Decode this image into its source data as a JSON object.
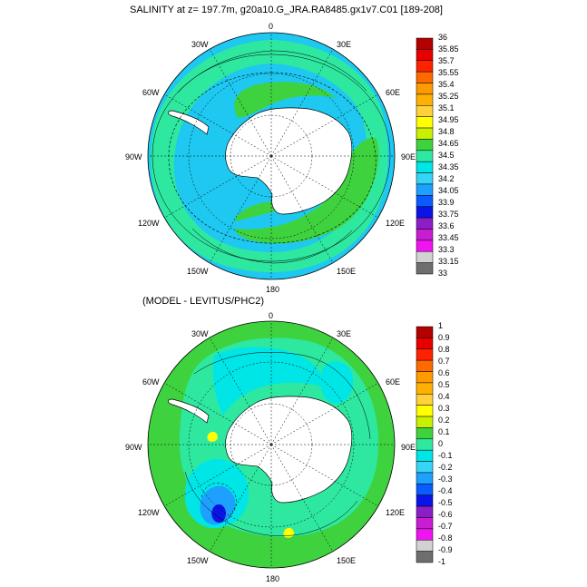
{
  "top_panel": {
    "title": "SALINITY at z= 197.7m, g20a10.G_JRA.RA8485.gx1v7.C01 [189-208]",
    "lon_labels": [
      "0",
      "30E",
      "60E",
      "90E",
      "120E",
      "150E",
      "180",
      "150W",
      "120W",
      "90W",
      "60W",
      "30W"
    ],
    "colorbar": {
      "levels": [
        "36",
        "35.85",
        "35.7",
        "35.55",
        "35.4",
        "35.25",
        "35.1",
        "34.95",
        "34.8",
        "34.65",
        "34.5",
        "34.35",
        "34.2",
        "34.05",
        "33.9",
        "33.75",
        "33.6",
        "33.45",
        "33.3",
        "33.15",
        "33"
      ],
      "colors": [
        "#b30000",
        "#e60000",
        "#ff2200",
        "#ff6a00",
        "#ff9a00",
        "#ffb000",
        "#ffd13a",
        "#ffff00",
        "#c8f000",
        "#3fd23f",
        "#2ee8a0",
        "#00e6e6",
        "#36d5f5",
        "#1ea0ff",
        "#0a5cff",
        "#0a14e6",
        "#8c1ec8",
        "#c81ed2",
        "#f014f0",
        "#d2d2d2",
        "#6e6e6e"
      ]
    }
  },
  "bottom_panel": {
    "title": "(MODEL - LEVITUS/PHC2)",
    "lon_labels": [
      "0",
      "30E",
      "60E",
      "90E",
      "120E",
      "150E",
      "180",
      "150W",
      "120W",
      "90W",
      "60W",
      "30W"
    ],
    "colorbar": {
      "levels": [
        "1",
        "0.9",
        "0.8",
        "0.7",
        "0.6",
        "0.5",
        "0.4",
        "0.3",
        "0.2",
        "0.1",
        "0",
        "-0.1",
        "-0.2",
        "-0.3",
        "-0.4",
        "-0.5",
        "-0.6",
        "-0.7",
        "-0.8",
        "-0.9",
        "-1"
      ],
      "colors": [
        "#b30000",
        "#e60000",
        "#ff2200",
        "#ff6a00",
        "#ff9a00",
        "#ffb000",
        "#ffd13a",
        "#ffff00",
        "#c8f000",
        "#3fd23f",
        "#2ee8a0",
        "#00e6e6",
        "#36d5f5",
        "#1ea0ff",
        "#0a5cff",
        "#0a14e6",
        "#8c1ec8",
        "#c81ed2",
        "#f014f0",
        "#d2d2d2",
        "#6e6e6e"
      ]
    }
  },
  "map_colors": {
    "land": "#ffffff",
    "fresh_ocean": "#1ec8f0",
    "mid_ocean": "#2ee8a0",
    "salty_band": "#3fd23f",
    "diff_positive": "#3fd23f",
    "diff_zero": "#2ee8a0",
    "diff_negative": "#00e6e6",
    "diff_strong_negative": "#1ea0ff",
    "diff_extreme_negative": "#0a14e6",
    "diff_hotspot": "#ffff00"
  }
}
